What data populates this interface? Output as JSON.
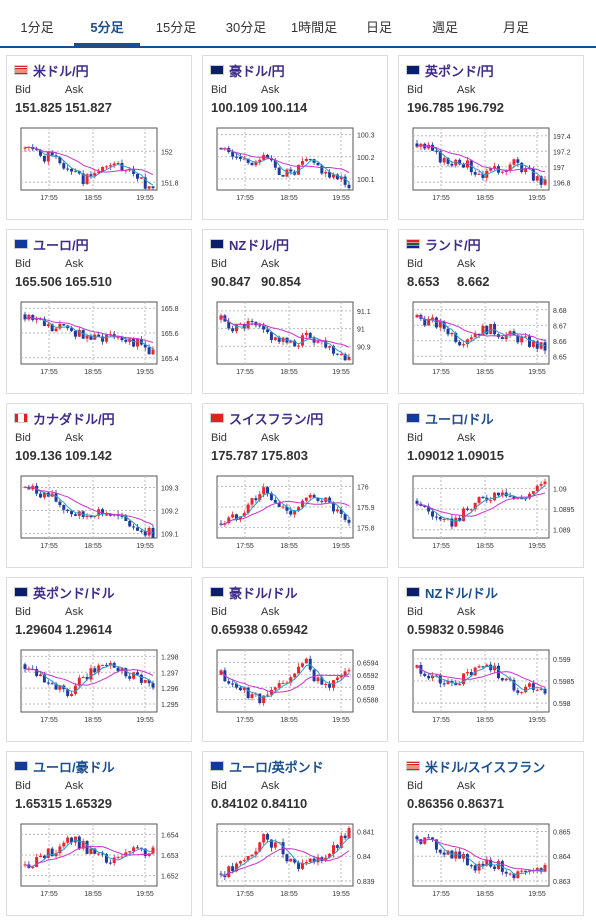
{
  "tabs": [
    {
      "label": "1分足",
      "active": false
    },
    {
      "label": "5分足",
      "active": true
    },
    {
      "label": "15分足",
      "active": false
    },
    {
      "label": "30分足",
      "active": false
    },
    {
      "label": "1時間足",
      "active": false
    },
    {
      "label": "日足",
      "active": false
    },
    {
      "label": "週足",
      "active": false
    },
    {
      "label": "月足",
      "active": false
    }
  ],
  "labels": {
    "bid": "Bid",
    "ask": "Ask"
  },
  "x_ticks": [
    "17:55",
    "18:55",
    "19:55"
  ],
  "colors": {
    "up": "#e8262d",
    "down": "#1d3b9c",
    "ma1": "#cc33cc",
    "ma2": "#3399cc",
    "title": "#3d2b8a",
    "accent": "#1a4f8b"
  },
  "cards": [
    {
      "name": "米ドル/円",
      "flag": "us",
      "bid": "151.825",
      "ask": "151.827",
      "yticks": [
        "152",
        "151.8"
      ],
      "ymin": 151.75,
      "ymax": 152.15,
      "trend": [
        152.02,
        151.98,
        151.95,
        151.9,
        151.82,
        151.85,
        151.92,
        151.88,
        151.8,
        151.78
      ],
      "seed": 1
    },
    {
      "name": "豪ドル/円",
      "flag": "au",
      "bid": "100.109",
      "ask": "100.114",
      "yticks": [
        "100.3",
        "100.2",
        "100.1"
      ],
      "ymin": 100.05,
      "ymax": 100.33,
      "trend": [
        100.24,
        100.2,
        100.18,
        100.2,
        100.14,
        100.12,
        100.18,
        100.15,
        100.1,
        100.08
      ],
      "seed": 2
    },
    {
      "name": "英ポンド/円",
      "flag": "gb",
      "bid": "196.785",
      "ask": "196.792",
      "yticks": [
        "197.4",
        "197.2",
        "197",
        "196.8"
      ],
      "ymin": 196.7,
      "ymax": 197.5,
      "trend": [
        197.3,
        197.2,
        197.05,
        197.1,
        196.95,
        196.9,
        197.0,
        197.05,
        196.9,
        196.78
      ],
      "seed": 3
    },
    {
      "name": "ユーロ/円",
      "flag": "eu",
      "bid": "165.506",
      "ask": "165.510",
      "yticks": [
        "165.8",
        "165.6",
        "165.4"
      ],
      "ymin": 165.35,
      "ymax": 165.85,
      "trend": [
        165.75,
        165.7,
        165.62,
        165.65,
        165.58,
        165.55,
        165.6,
        165.57,
        165.5,
        165.45
      ],
      "seed": 4
    },
    {
      "name": "NZドル/円",
      "flag": "nz",
      "bid": "90.847",
      "ask": "90.854",
      "yticks": [
        "91.1",
        "91",
        "90.9"
      ],
      "ymin": 90.8,
      "ymax": 91.15,
      "trend": [
        91.05,
        91.0,
        91.02,
        90.98,
        90.94,
        90.9,
        90.96,
        90.93,
        90.88,
        90.84
      ],
      "seed": 5
    },
    {
      "name": "ランド/円",
      "flag": "za",
      "bid": "8.653",
      "ask": "8.662",
      "yticks": [
        "8.68",
        "8.67",
        "8.66",
        "8.65"
      ],
      "ymin": 8.645,
      "ymax": 8.685,
      "trend": [
        8.675,
        8.672,
        8.668,
        8.66,
        8.665,
        8.668,
        8.664,
        8.662,
        8.658,
        8.655
      ],
      "seed": 6
    },
    {
      "name": "カナダドル/円",
      "flag": "ca",
      "bid": "109.136",
      "ask": "109.142",
      "yticks": [
        "109.3",
        "109.2",
        "109.1"
      ],
      "ymin": 109.08,
      "ymax": 109.35,
      "trend": [
        109.3,
        109.28,
        109.25,
        109.2,
        109.17,
        109.2,
        109.18,
        109.15,
        109.12,
        109.1
      ],
      "seed": 7
    },
    {
      "name": "スイスフラン/円",
      "flag": "ch",
      "bid": "175.787",
      "ask": "175.803",
      "yticks": [
        "176",
        "175.9",
        "175.8"
      ],
      "ymin": 175.75,
      "ymax": 176.05,
      "trend": [
        175.82,
        175.85,
        175.92,
        175.98,
        175.9,
        175.88,
        175.93,
        175.95,
        175.88,
        175.8
      ],
      "seed": 8
    },
    {
      "name": "ユーロ/ドル",
      "flag": "euus",
      "bid": "1.09012",
      "ask": "1.09015",
      "yticks": [
        "1.09",
        "1.0895",
        "1.089"
      ],
      "ymin": 1.0888,
      "ymax": 1.0903,
      "trend": [
        1.0897,
        1.0894,
        1.0891,
        1.0893,
        1.0896,
        1.0898,
        1.09,
        1.0897,
        1.0899,
        1.0901
      ],
      "seed": 9
    },
    {
      "name": "英ポンド/ドル",
      "flag": "gbus",
      "bid": "1.29604",
      "ask": "1.29614",
      "yticks": [
        "1.298",
        "1.297",
        "1.296",
        "1.295"
      ],
      "ymin": 1.2945,
      "ymax": 1.2984,
      "trend": [
        1.2975,
        1.297,
        1.2962,
        1.2955,
        1.2965,
        1.2972,
        1.2976,
        1.297,
        1.2968,
        1.296
      ],
      "seed": 10
    },
    {
      "name": "豪ドル/ドル",
      "flag": "auus",
      "bid": "0.65938",
      "ask": "0.65942",
      "yticks": [
        "0.6594",
        "0.6592",
        "0.659",
        "0.6588"
      ],
      "ymin": 0.6586,
      "ymax": 0.6596,
      "trend": [
        0.6592,
        0.659,
        0.6589,
        0.6588,
        0.659,
        0.6592,
        0.6594,
        0.659,
        0.6591,
        0.6593
      ],
      "seed": 11
    },
    {
      "name": "NZドル/ドル",
      "flag": "nzus",
      "bid": "0.59832",
      "ask": "0.59846",
      "yticks": [
        "0.599",
        "0.5985",
        "0.598"
      ],
      "ymin": 0.5978,
      "ymax": 0.5992,
      "trend": [
        0.5988,
        0.5986,
        0.5984,
        0.5985,
        0.5987,
        0.5989,
        0.5986,
        0.5983,
        0.5984,
        0.5983
      ],
      "seed": 12
    },
    {
      "name": "ユーロ/豪ドル",
      "flag": "euau",
      "bid": "1.65315",
      "ask": "1.65329",
      "yticks": [
        "1.654",
        "1.653",
        "1.652"
      ],
      "ymin": 1.6515,
      "ymax": 1.6545,
      "trend": [
        1.6525,
        1.6528,
        1.6532,
        1.6538,
        1.6535,
        1.653,
        1.6526,
        1.653,
        1.6532,
        1.6531
      ],
      "seed": 13
    },
    {
      "name": "ユーロ/英ポンド",
      "flag": "eugb",
      "bid": "0.84102",
      "ask": "0.84110",
      "yticks": [
        "0.841",
        "0.84",
        "0.839"
      ],
      "ymin": 0.8388,
      "ymax": 0.8413,
      "trend": [
        0.8393,
        0.8395,
        0.84,
        0.8407,
        0.8404,
        0.8398,
        0.8396,
        0.8399,
        0.8403,
        0.841
      ],
      "seed": 14
    },
    {
      "name": "米ドル/スイスフラン",
      "flag": "usch",
      "bid": "0.86356",
      "ask": "0.86371",
      "yticks": [
        "0.865",
        "0.864",
        "0.863"
      ],
      "ymin": 0.8628,
      "ymax": 0.8653,
      "trend": [
        0.8648,
        0.8645,
        0.8642,
        0.864,
        0.8636,
        0.8638,
        0.8635,
        0.8633,
        0.8632,
        0.8636
      ],
      "seed": 15
    }
  ]
}
